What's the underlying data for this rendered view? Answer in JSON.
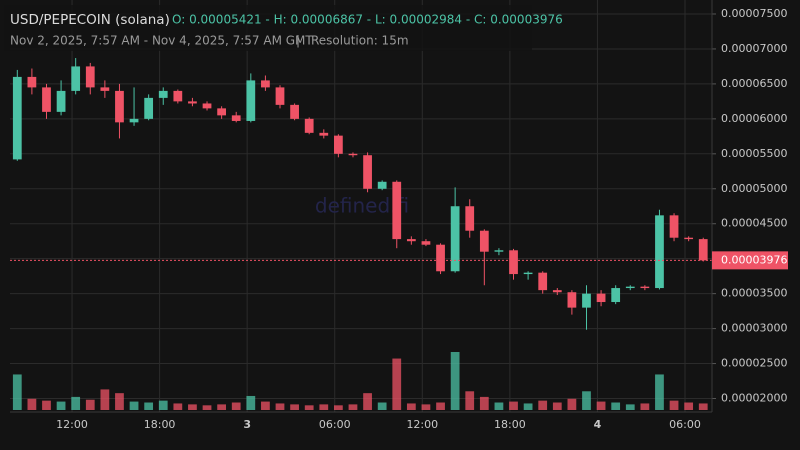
{
  "chart_data": {
    "type": "candlestick",
    "title": "USD/PEPECOIN (solana)",
    "ohlc_summary": "O: 0.00005421 - H: 0.00006867 - L: 0.00002984 - C: 0.00003976",
    "subtitle": "Nov 2, 2025, 7:57 AM - Nov 4, 2025, 7:57 AM GMT",
    "separator": "|",
    "resolution": "Resolution: 15m",
    "watermark": "defined.fi",
    "x": [
      0.5,
      1.5,
      2.5,
      3.5,
      4.5,
      5.5,
      6.5,
      7.5,
      8.5,
      9.5,
      10.5,
      11.5,
      12.5,
      13.5,
      14.5,
      15.5,
      16.5,
      17.5,
      18.5,
      19.5,
      20.5,
      21.5,
      22.5,
      23.5,
      24.5,
      25.5,
      26.5,
      27.5,
      28.5,
      29.5,
      30.5,
      31.5,
      32.5,
      33.5,
      34.5,
      35.5,
      36.5,
      37.5,
      38.5,
      39.5,
      40.5,
      41.5,
      42.5,
      43.5,
      44.5,
      45.5,
      46.5,
      47.5
    ],
    "open": [
      5.42e-05,
      6.6e-05,
      6.45e-05,
      6.1e-05,
      6.4e-05,
      6.75e-05,
      6.45e-05,
      6.4e-05,
      5.95e-05,
      6e-05,
      6.3e-05,
      6.4e-05,
      6.25e-05,
      6.22e-05,
      6.15e-05,
      6.05e-05,
      5.97e-05,
      6.55e-05,
      6.45e-05,
      6.2e-05,
      6e-05,
      5.8e-05,
      5.76e-05,
      5.5e-05,
      5.48e-05,
      5e-05,
      5.1e-05,
      4.28e-05,
      4.25e-05,
      4.2e-05,
      3.82e-05,
      4.75e-05,
      4.4e-05,
      4.1e-05,
      4.12e-05,
      3.78e-05,
      3.8e-05,
      3.55e-05,
      3.52e-05,
      3.3e-05,
      3.5e-05,
      3.38e-05,
      3.58e-05,
      3.6e-05,
      3.58e-05,
      4.62e-05,
      4.3e-05,
      4.28e-05
    ],
    "high": [
      6.7e-05,
      6.72e-05,
      6.5e-05,
      6.55e-05,
      6.87e-05,
      6.8e-05,
      6.55e-05,
      6.5e-05,
      6.45e-05,
      6.35e-05,
      6.45e-05,
      6.42e-05,
      6.3e-05,
      6.25e-05,
      6.18e-05,
      6.1e-05,
      6.65e-05,
      6.62e-05,
      6.48e-05,
      6.22e-05,
      6.02e-05,
      5.85e-05,
      5.78e-05,
      5.52e-05,
      5.52e-05,
      5.12e-05,
      5.12e-05,
      4.32e-05,
      4.28e-05,
      4.22e-05,
      5.02e-05,
      4.85e-05,
      4.42e-05,
      4.15e-05,
      4.14e-05,
      3.82e-05,
      3.82e-05,
      3.58e-05,
      3.55e-05,
      3.62e-05,
      3.55e-05,
      3.62e-05,
      3.62e-05,
      3.62e-05,
      4.7e-05,
      4.65e-05,
      4.32e-05,
      4.3e-05
    ],
    "low": [
      5.4e-05,
      6.35e-05,
      6e-05,
      6.05e-05,
      6.35e-05,
      6.35e-05,
      6.3e-05,
      5.72e-05,
      5.9e-05,
      5.98e-05,
      6.2e-05,
      6.22e-05,
      6.18e-05,
      6.12e-05,
      6e-05,
      5.95e-05,
      5.95e-05,
      6.4e-05,
      6.15e-05,
      5.98e-05,
      5.78e-05,
      5.72e-05,
      5.45e-05,
      5.45e-05,
      4.95e-05,
      4.98e-05,
      4.15e-05,
      4.2e-05,
      4.18e-05,
      3.78e-05,
      3.8e-05,
      4.3e-05,
      3.62e-05,
      4.05e-05,
      3.7e-05,
      3.7e-05,
      3.5e-05,
      3.48e-05,
      3.2e-05,
      2.984e-05,
      3.32e-05,
      3.35e-05,
      3.55e-05,
      3.55e-05,
      3.56e-05,
      4.25e-05,
      4.25e-05,
      3.96e-05
    ],
    "close": [
      6.6e-05,
      6.45e-05,
      6.1e-05,
      6.4e-05,
      6.75e-05,
      6.45e-05,
      6.4e-05,
      5.95e-05,
      6e-05,
      6.3e-05,
      6.4e-05,
      6.25e-05,
      6.22e-05,
      6.15e-05,
      6.05e-05,
      5.97e-05,
      6.55e-05,
      6.45e-05,
      6.2e-05,
      6e-05,
      5.8e-05,
      5.76e-05,
      5.5e-05,
      5.48e-05,
      5e-05,
      5.1e-05,
      4.28e-05,
      4.25e-05,
      4.2e-05,
      3.82e-05,
      4.75e-05,
      4.4e-05,
      4.1e-05,
      4.12e-05,
      3.78e-05,
      3.8e-05,
      3.55e-05,
      3.52e-05,
      3.3e-05,
      3.5e-05,
      3.38e-05,
      3.58e-05,
      3.6e-05,
      3.58e-05,
      4.62e-05,
      4.3e-05,
      4.28e-05,
      3.976e-05
    ],
    "volume": [
      38,
      12,
      10,
      9,
      14,
      11,
      22,
      18,
      9,
      8,
      10,
      7,
      6,
      5,
      6,
      8,
      15,
      9,
      7,
      6,
      5,
      6,
      5,
      6,
      18,
      8,
      55,
      7,
      6,
      8,
      62,
      20,
      14,
      8,
      9,
      7,
      10,
      8,
      12,
      20,
      9,
      8,
      6,
      7,
      38,
      10,
      8,
      7
    ],
    "last_price": {
      "value": 3.976e-05,
      "label": "0.00003976"
    },
    "xlim": [
      0,
      48.1
    ],
    "ylim": [
      1.85e-05,
      7.7e-05
    ],
    "xticks": [
      {
        "value": 4.25,
        "label": "12:00"
      },
      {
        "value": 10.25,
        "label": "18:00"
      },
      {
        "value": 16.25,
        "label": "3"
      },
      {
        "value": 22.25,
        "label": "06:00"
      },
      {
        "value": 28.25,
        "label": "12:00"
      },
      {
        "value": 34.25,
        "label": "18:00"
      },
      {
        "value": 40.25,
        "label": "4"
      },
      {
        "value": 46.25,
        "label": "06:00"
      }
    ],
    "yticks": [
      {
        "value": 2e-05,
        "label": "0.00002000"
      },
      {
        "value": 2.5e-05,
        "label": "0.00002500"
      },
      {
        "value": 3e-05,
        "label": "0.00003000"
      },
      {
        "value": 3.5e-05,
        "label": "0.00003500"
      },
      {
        "value": 4e-05,
        "label": "0.00004000"
      },
      {
        "value": 4.5e-05,
        "label": "0.00004500"
      },
      {
        "value": 5e-05,
        "label": "0.00005000"
      },
      {
        "value": 5.5e-05,
        "label": "0.00005500"
      },
      {
        "value": 6e-05,
        "label": "0.00006000"
      },
      {
        "value": 6.5e-05,
        "label": "0.00006500"
      },
      {
        "value": 7e-05,
        "label": "0.00007000"
      },
      {
        "value": 7.5e-05,
        "label": "0.00007500"
      }
    ],
    "up_color": "#4cc3a6",
    "down_color": "#ef5366",
    "grid": true
  }
}
